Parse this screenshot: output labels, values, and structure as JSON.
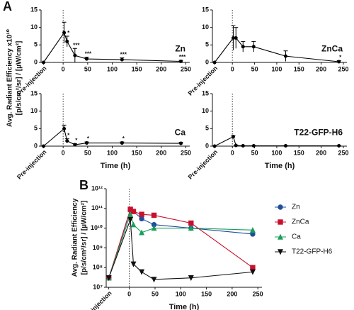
{
  "chart_data": [
    {
      "type": "line",
      "panel_label": "A",
      "label": "Zn",
      "y_label": [
        "Avg. Radiant Efficiency x10¹⁰",
        "[p/s/cm²/sr] / [µW/cm²]"
      ],
      "x": [
        -40,
        2,
        8,
        24,
        48,
        120,
        240
      ],
      "xlim": [
        -45,
        258
      ],
      "xticks": [
        {
          "value": -40,
          "label": "Pre-injection"
        },
        0,
        50,
        100,
        150,
        200,
        250
      ],
      "ylim": [
        0,
        15
      ],
      "yticks": [
        0,
        5,
        10,
        15
      ],
      "vline": 0,
      "color": "#000000",
      "values": [
        0,
        8.5,
        6,
        2,
        1,
        0.8,
        0.3
      ],
      "errors": [
        0,
        3,
        1.5,
        2,
        0.5,
        0.5,
        0.3
      ],
      "annotations": [
        null,
        null,
        "*",
        "***",
        "***",
        "***",
        "***"
      ]
    },
    {
      "type": "line",
      "label": "ZnCa",
      "x": [
        -40,
        2,
        8,
        24,
        48,
        120,
        240
      ],
      "xlim": [
        -45,
        258
      ],
      "xticks": [
        {
          "value": -40,
          "label": "Pre-injection"
        },
        0,
        50,
        100,
        150,
        200,
        250
      ],
      "ylim": [
        0,
        15
      ],
      "yticks": [
        0,
        5,
        10,
        15
      ],
      "vline": 0,
      "color": "#000000",
      "values": [
        0,
        7,
        7,
        4.5,
        4.5,
        1.8,
        0.2
      ],
      "errors": [
        0,
        3.5,
        3,
        1.5,
        1.5,
        1.5,
        0.3
      ],
      "annotations": [
        null,
        null,
        null,
        null,
        null,
        null,
        "*"
      ]
    },
    {
      "type": "line",
      "label": "Ca",
      "x_label": "Time (h)",
      "x": [
        -40,
        2,
        8,
        24,
        48,
        120,
        240
      ],
      "xlim": [
        -45,
        258
      ],
      "xticks": [
        {
          "value": -40,
          "label": "Pre-injection"
        },
        0,
        50,
        100,
        150,
        200,
        250
      ],
      "ylim": [
        0,
        15
      ],
      "yticks": [
        0,
        5,
        10,
        15
      ],
      "vline": 0,
      "color": "#000000",
      "values": [
        0,
        5,
        1.5,
        0.4,
        0.9,
        0.9,
        0.8
      ],
      "errors": [
        0,
        1,
        0.6,
        0.3,
        0.3,
        0.3,
        0.3
      ],
      "annotations": [
        null,
        null,
        "*",
        "*",
        "*",
        "*",
        null
      ]
    },
    {
      "type": "line",
      "label": "T22-GFP-H6",
      "x_label": "Time (h)",
      "x": [
        -40,
        2,
        8,
        24,
        48,
        120,
        240
      ],
      "xlim": [
        -45,
        258
      ],
      "xticks": [
        {
          "value": -40,
          "label": "Pre-injection"
        },
        0,
        50,
        100,
        150,
        200,
        250
      ],
      "ylim": [
        0,
        15
      ],
      "yticks": [
        0,
        5,
        10,
        15
      ],
      "vline": 0,
      "color": "#000000",
      "values": [
        0,
        2.7,
        0.2,
        0.1,
        0.1,
        0.1,
        0.1
      ],
      "errors": [
        0,
        0.3,
        0.1,
        0.05,
        0.05,
        0.05,
        0.05
      ],
      "annotations": [
        null,
        null,
        null,
        null,
        null,
        null,
        null
      ]
    },
    {
      "type": "line",
      "panel_label": "B",
      "log_y": true,
      "legend": "right",
      "x_label": "Time (h)",
      "y_label": [
        "Avg. Radiant Efficiency",
        "[p/s/cm²/sr] / [µW/cm²]"
      ],
      "x": [
        -40,
        2,
        8,
        24,
        48,
        120,
        240
      ],
      "xlim": [
        -45,
        258
      ],
      "xticks": [
        {
          "value": -40,
          "label": "Pre-injection"
        },
        0,
        50,
        100,
        150,
        200,
        250
      ],
      "ylim": [
        10000000,
        1000000000000
      ],
      "yticks": [
        {
          "value": 10000000,
          "label": "10⁷"
        },
        {
          "value": 100000000,
          "label": "10⁸"
        },
        {
          "value": 1000000000,
          "label": "10⁹"
        },
        {
          "value": 10000000000,
          "label": "10¹⁰"
        },
        {
          "value": 100000000000,
          "label": "10¹¹"
        },
        {
          "value": 1000000000000,
          "label": "10¹²"
        }
      ],
      "vline": 0,
      "series": [
        {
          "name": "Zn",
          "color": "#1f4e9c",
          "marker": "circle",
          "values": [
            30000000,
            80000000000,
            70000000000,
            30000000000,
            15000000000,
            10000000000,
            5000000000
          ]
        },
        {
          "name": "ZnCa",
          "color": "#c8102e",
          "marker": "square",
          "values": [
            30000000,
            90000000000,
            70000000000,
            50000000000,
            45000000000,
            18000000000,
            100000000
          ]
        },
        {
          "name": "Ca",
          "color": "#1a9e5a",
          "marker": "triangle",
          "values": [
            30000000,
            50000000000,
            15000000000,
            6000000000,
            10000000000,
            10000000000,
            8000000000
          ]
        },
        {
          "name": "T22-GFP-H6",
          "color": "#111111",
          "marker": "triangle-down",
          "values": [
            30000000,
            27000000000,
            150000000,
            60000000,
            25000000,
            30000000,
            60000000
          ]
        }
      ]
    }
  ]
}
